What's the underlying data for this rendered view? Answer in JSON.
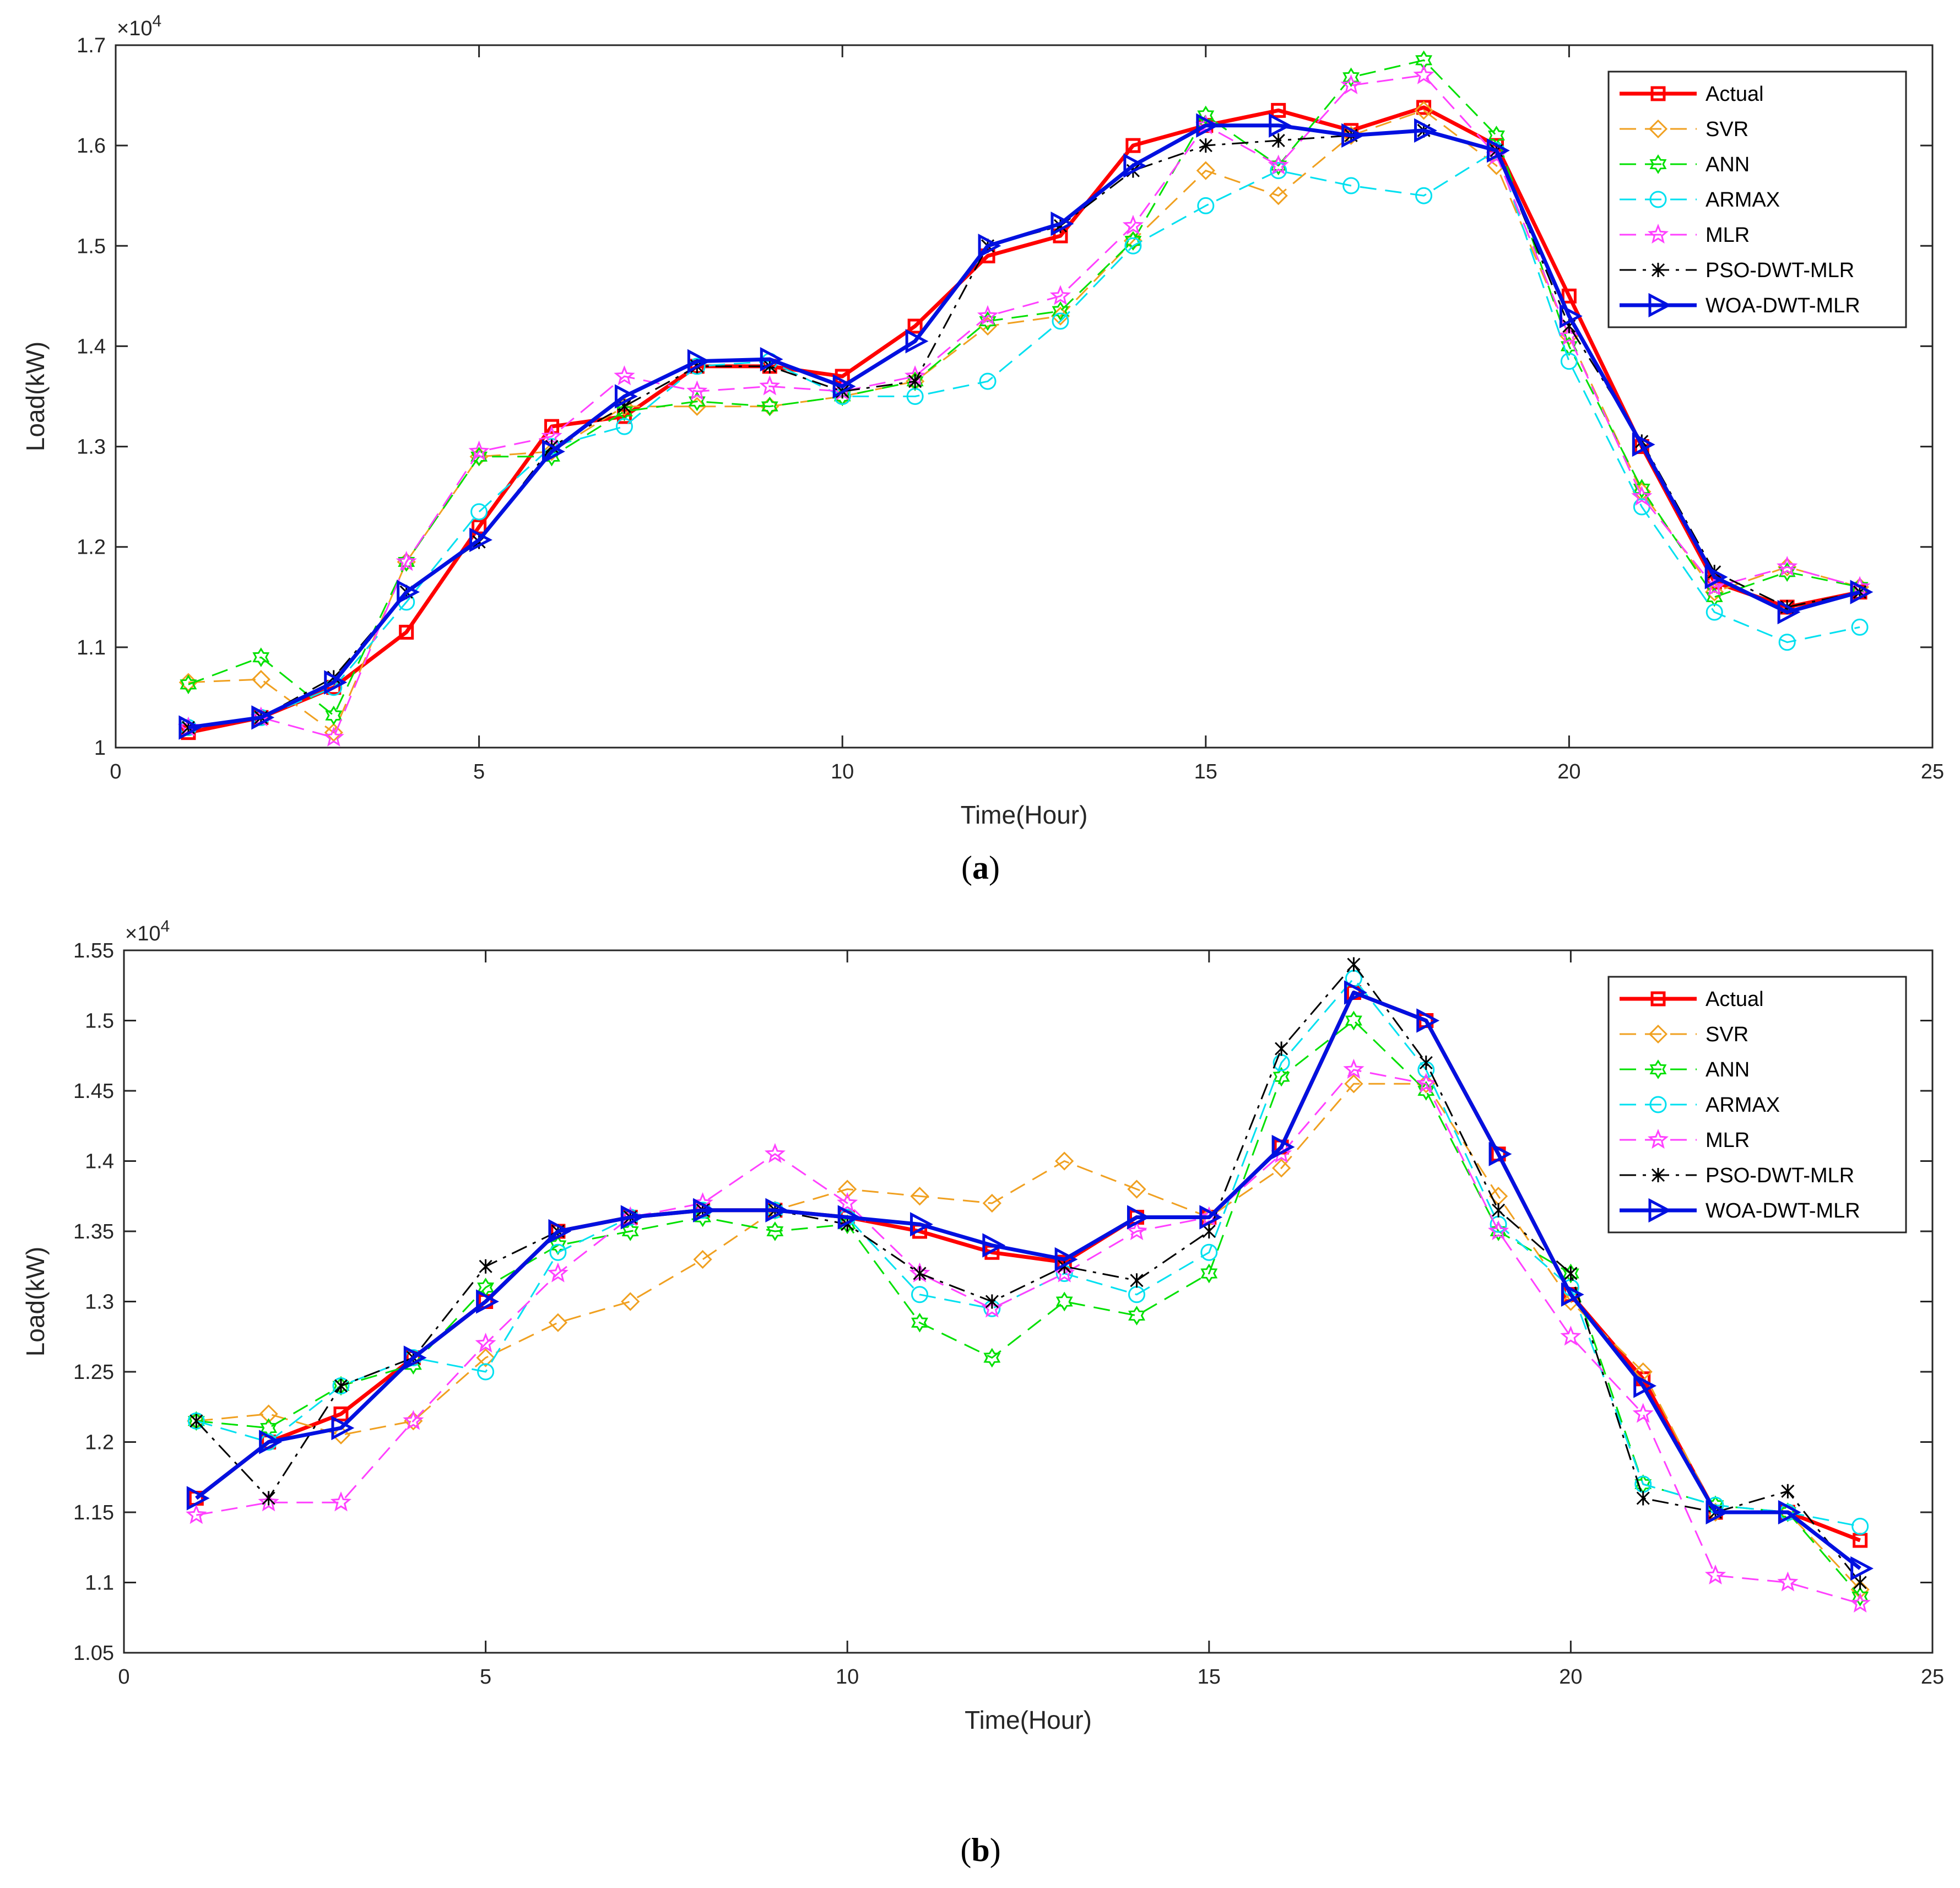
{
  "figure": {
    "panels": [
      {
        "caption_letter": "a"
      },
      {
        "caption_letter": "b"
      }
    ]
  },
  "chart_data": [
    {
      "type": "line",
      "panel": "a",
      "title": "",
      "xlabel": "Time(Hour)",
      "ylabel": "Load(kW)",
      "exponent_label": "×10^4",
      "exponent_base": "×10",
      "exponent_power": "4",
      "xlim": [
        0,
        25
      ],
      "ylim": [
        1.0,
        1.7
      ],
      "xticks": [
        0,
        5,
        10,
        15,
        20,
        25
      ],
      "yticks": [
        1.0,
        1.1,
        1.2,
        1.3,
        1.4,
        1.5,
        1.6,
        1.7
      ],
      "ytick_labels": [
        "1",
        "1.1",
        "1.2",
        "1.3",
        "1.4",
        "1.5",
        "1.6",
        "1.7"
      ],
      "legend_position": "top-right",
      "x": [
        1,
        2,
        3,
        4,
        5,
        6,
        7,
        8,
        9,
        10,
        11,
        12,
        13,
        14,
        15,
        16,
        17,
        18,
        19,
        20,
        21,
        22,
        23,
        24
      ],
      "series": [
        {
          "name": "Actual",
          "color": "#ff0000",
          "dash": "solid",
          "marker": "square",
          "width": "thick",
          "values": [
            1.015,
            1.03,
            1.06,
            1.115,
            1.22,
            1.32,
            1.33,
            1.38,
            1.38,
            1.37,
            1.42,
            1.49,
            1.51,
            1.6,
            1.62,
            1.635,
            1.615,
            1.638,
            1.6,
            1.45,
            1.3,
            1.165,
            1.14,
            1.155
          ]
        },
        {
          "name": "SVR",
          "color": "#f0a020",
          "dash": "dashed",
          "marker": "diamond",
          "width": "thin",
          "values": [
            1.065,
            1.068,
            1.015,
            1.185,
            1.29,
            1.295,
            1.34,
            1.34,
            1.34,
            1.35,
            1.365,
            1.42,
            1.43,
            1.505,
            1.575,
            1.55,
            1.61,
            1.635,
            1.58,
            1.41,
            1.255,
            1.155,
            1.18,
            1.16
          ]
        },
        {
          "name": "ANN",
          "color": "#00e000",
          "dash": "dashed",
          "marker": "hexagram",
          "width": "thin",
          "values": [
            1.063,
            1.09,
            1.032,
            1.185,
            1.29,
            1.29,
            1.335,
            1.345,
            1.34,
            1.35,
            1.365,
            1.425,
            1.435,
            1.505,
            1.63,
            1.58,
            1.668,
            1.685,
            1.61,
            1.4,
            1.258,
            1.15,
            1.175,
            1.16
          ]
        },
        {
          "name": "ARMAX",
          "color": "#00e0f0",
          "dash": "dashed",
          "marker": "circle",
          "width": "thin",
          "values": [
            1.02,
            1.03,
            1.06,
            1.145,
            1.235,
            1.3,
            1.32,
            1.38,
            1.385,
            1.35,
            1.35,
            1.365,
            1.425,
            1.5,
            1.54,
            1.575,
            1.56,
            1.55,
            1.595,
            1.385,
            1.24,
            1.135,
            1.105,
            1.12
          ]
        },
        {
          "name": "MLR",
          "color": "#ff40ff",
          "dash": "dashed",
          "marker": "star",
          "width": "thin",
          "values": [
            1.02,
            1.03,
            1.01,
            1.185,
            1.295,
            1.31,
            1.37,
            1.355,
            1.36,
            1.355,
            1.37,
            1.43,
            1.45,
            1.52,
            1.62,
            1.58,
            1.66,
            1.67,
            1.59,
            1.41,
            1.25,
            1.16,
            1.18,
            1.16
          ]
        },
        {
          "name": "PSO-DWT-MLR",
          "color": "#000000",
          "dash": "dashdot",
          "marker": "x",
          "width": "thin",
          "values": [
            1.02,
            1.03,
            1.07,
            1.155,
            1.205,
            1.3,
            1.34,
            1.38,
            1.38,
            1.355,
            1.365,
            1.5,
            1.52,
            1.575,
            1.6,
            1.605,
            1.61,
            1.615,
            1.595,
            1.42,
            1.305,
            1.175,
            1.14,
            1.155
          ]
        },
        {
          "name": "WOA-DWT-MLR",
          "color": "#0010e0",
          "dash": "solid",
          "marker": "triangle-right",
          "width": "thick",
          "values": [
            1.02,
            1.03,
            1.065,
            1.155,
            1.207,
            1.295,
            1.35,
            1.385,
            1.387,
            1.36,
            1.405,
            1.5,
            1.522,
            1.58,
            1.62,
            1.62,
            1.61,
            1.615,
            1.595,
            1.43,
            1.302,
            1.17,
            1.135,
            1.155
          ]
        }
      ]
    },
    {
      "type": "line",
      "panel": "b",
      "title": "",
      "xlabel": "Time(Hour)",
      "ylabel": "Load(kW)",
      "exponent_label": "×10^4",
      "exponent_base": "×10",
      "exponent_power": "4",
      "xlim": [
        0,
        25
      ],
      "ylim": [
        1.05,
        1.55
      ],
      "xticks": [
        0,
        5,
        10,
        15,
        20,
        25
      ],
      "yticks": [
        1.05,
        1.1,
        1.15,
        1.2,
        1.25,
        1.3,
        1.35,
        1.4,
        1.45,
        1.5,
        1.55
      ],
      "ytick_labels": [
        "1.05",
        "1.1",
        "1.15",
        "1.2",
        "1.25",
        "1.3",
        "1.35",
        "1.4",
        "1.45",
        "1.5",
        "1.55"
      ],
      "legend_position": "top-right",
      "x": [
        1,
        2,
        3,
        4,
        5,
        6,
        7,
        8,
        9,
        10,
        11,
        12,
        13,
        14,
        15,
        16,
        17,
        18,
        19,
        20,
        21,
        22,
        23,
        24
      ],
      "series": [
        {
          "name": "Actual",
          "color": "#ff0000",
          "dash": "solid",
          "marker": "square",
          "width": "thick",
          "values": [
            1.16,
            1.2,
            1.22,
            1.26,
            1.3,
            1.35,
            1.36,
            1.365,
            1.365,
            1.36,
            1.35,
            1.335,
            1.328,
            1.36,
            1.36,
            1.41,
            1.52,
            1.5,
            1.405,
            1.305,
            1.245,
            1.15,
            1.15,
            1.13
          ]
        },
        {
          "name": "SVR",
          "color": "#f0a020",
          "dash": "dashed",
          "marker": "diamond",
          "width": "thin",
          "values": [
            1.215,
            1.22,
            1.205,
            1.215,
            1.26,
            1.285,
            1.3,
            1.33,
            1.365,
            1.38,
            1.375,
            1.37,
            1.4,
            1.38,
            1.36,
            1.395,
            1.455,
            1.455,
            1.375,
            1.3,
            1.25,
            1.15,
            1.15,
            1.095
          ]
        },
        {
          "name": "ANN",
          "color": "#00e000",
          "dash": "dashed",
          "marker": "hexagram",
          "width": "thin",
          "values": [
            1.215,
            1.21,
            1.24,
            1.255,
            1.31,
            1.34,
            1.35,
            1.36,
            1.35,
            1.355,
            1.285,
            1.26,
            1.3,
            1.29,
            1.32,
            1.46,
            1.5,
            1.45,
            1.35,
            1.32,
            1.17,
            1.155,
            1.15,
            1.09
          ]
        },
        {
          "name": "ARMAX",
          "color": "#00e0f0",
          "dash": "dashed",
          "marker": "circle",
          "width": "thin",
          "values": [
            1.215,
            1.2,
            1.24,
            1.26,
            1.25,
            1.335,
            1.36,
            1.365,
            1.365,
            1.36,
            1.305,
            1.295,
            1.32,
            1.305,
            1.335,
            1.47,
            1.53,
            1.465,
            1.355,
            1.31,
            1.17,
            1.155,
            1.15,
            1.14
          ]
        },
        {
          "name": "MLR",
          "color": "#ff40ff",
          "dash": "dashed",
          "marker": "star",
          "width": "thin",
          "values": [
            1.148,
            1.157,
            1.157,
            1.215,
            1.27,
            1.32,
            1.36,
            1.37,
            1.405,
            1.37,
            1.32,
            1.295,
            1.32,
            1.35,
            1.36,
            1.405,
            1.465,
            1.455,
            1.35,
            1.275,
            1.22,
            1.105,
            1.1,
            1.085
          ]
        },
        {
          "name": "PSO-DWT-MLR",
          "color": "#000000",
          "dash": "dashdot",
          "marker": "x",
          "width": "thin",
          "values": [
            1.215,
            1.16,
            1.24,
            1.26,
            1.325,
            1.35,
            1.36,
            1.365,
            1.365,
            1.355,
            1.32,
            1.3,
            1.325,
            1.315,
            1.35,
            1.48,
            1.54,
            1.47,
            1.365,
            1.32,
            1.16,
            1.15,
            1.165,
            1.1
          ]
        },
        {
          "name": "WOA-DWT-MLR",
          "color": "#0010e0",
          "dash": "solid",
          "marker": "triangle-right",
          "width": "thick",
          "values": [
            1.16,
            1.2,
            1.21,
            1.26,
            1.3,
            1.35,
            1.36,
            1.365,
            1.365,
            1.36,
            1.355,
            1.34,
            1.33,
            1.36,
            1.36,
            1.41,
            1.52,
            1.5,
            1.405,
            1.305,
            1.24,
            1.15,
            1.15,
            1.11
          ]
        }
      ]
    }
  ]
}
